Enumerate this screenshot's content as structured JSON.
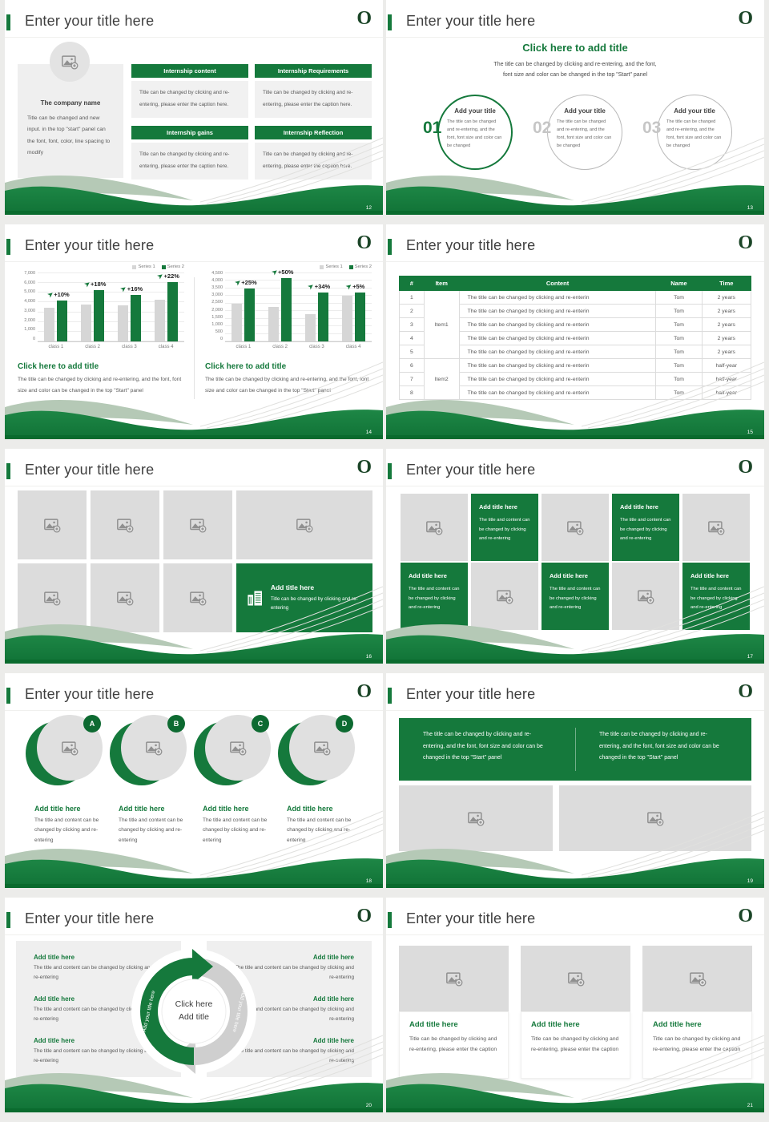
{
  "theme": {
    "green": "#15793c",
    "dark_green": "#0a6b2e",
    "logo_green": "#1b4527",
    "bar_gray": "#d6d6d6",
    "sage": "#b5c9b6"
  },
  "common": {
    "slide_title": "Enter your title here",
    "logo_text": "O"
  },
  "slide12": {
    "page": "12",
    "company": {
      "title": "The company name",
      "body": "Title can be changed and new input. in the top \"start\" panel can the font, font, color, line spacing to modify"
    },
    "box_titles": [
      "Internship content",
      "Internship Requirements",
      "Internship gains",
      "Internship Reflection"
    ],
    "box_body": "Title can be changed by clicking and re-entering, please enter the caption here."
  },
  "slide13": {
    "page": "13",
    "title": "Click here to add title",
    "subtitle": "The title can be changed by clicking and re-entering, and the font,\nfont size and color can be changed in the top \"Start\" panel",
    "nums": [
      "01",
      "02",
      "03"
    ],
    "circle": {
      "title": "Add your title",
      "body": "The title can be changed and re-entering, and the font, font size and color can be changed"
    }
  },
  "slide14": {
    "page": "14",
    "caption": {
      "title": "Click here to add title",
      "body": "The title can be changed by clicking and re-entering, and the font, font size and color can be changed in the top \"Start\" panel"
    },
    "chart_data": [
      {
        "type": "bar",
        "categories": [
          "class 1",
          "class 2",
          "class 3",
          "class 4"
        ],
        "series": [
          {
            "name": "Series 1",
            "color": "#d6d6d6",
            "values": [
              3500,
              3800,
              3700,
              4300
            ]
          },
          {
            "name": "Series 2",
            "color": "#15793c",
            "values": [
              4200,
              5300,
              4800,
              6100
            ]
          }
        ],
        "growth_labels": [
          "+10%",
          "+18%",
          "+16%",
          "+22%"
        ],
        "ylim": [
          0,
          7000
        ],
        "yticks": [
          "7,000",
          "6,000",
          "5,000",
          "4,000",
          "3,000",
          "2,000",
          "1,000",
          "0"
        ],
        "grid": true,
        "legend_position": "top-right"
      },
      {
        "type": "bar",
        "categories": [
          "class 1",
          "class 2",
          "class 3",
          "class 4"
        ],
        "series": [
          {
            "name": "Series 1",
            "color": "#d6d6d6",
            "values": [
              2500,
              2300,
              1800,
              3000
            ]
          },
          {
            "name": "Series 2",
            "color": "#15793c",
            "values": [
              3500,
              4200,
              3250,
              3250
            ]
          }
        ],
        "growth_labels": [
          "+25%",
          "+50%",
          "+34%",
          "+5%"
        ],
        "ylim": [
          0,
          4500
        ],
        "yticks": [
          "4,500",
          "4,000",
          "3,500",
          "3,000",
          "2,500",
          "2,000",
          "1,500",
          "1,000",
          "500",
          "0"
        ],
        "grid": true,
        "legend_position": "top-right"
      }
    ]
  },
  "slide15": {
    "page": "15",
    "headers": [
      "#",
      "Item",
      "Content",
      "Name",
      "Time"
    ],
    "content_text": "The title can be changed by clicking and re-enterin",
    "name_text": "Tom",
    "item_groups": [
      {
        "label": "Item1",
        "rowspan": 5
      },
      {
        "label": "Item2",
        "rowspan": 3
      }
    ],
    "rows": [
      {
        "num": "1",
        "time": "2 years"
      },
      {
        "num": "2",
        "time": "2 years"
      },
      {
        "num": "3",
        "time": "2 years"
      },
      {
        "num": "4",
        "time": "2 years"
      },
      {
        "num": "5",
        "time": "2 years"
      },
      {
        "num": "6",
        "time": "half-year"
      },
      {
        "num": "7",
        "time": "half-year"
      },
      {
        "num": "8",
        "time": "half-year"
      }
    ]
  },
  "slide16": {
    "page": "16",
    "feature": {
      "title": "Add title here",
      "body": "Title can be changed by clicking and re-entering"
    }
  },
  "slide17": {
    "page": "17",
    "cell": {
      "title": "Add title here",
      "body": "The title and content can be changed by clicking and re-entering"
    }
  },
  "slide18": {
    "page": "18",
    "badges": [
      "A",
      "B",
      "C",
      "D"
    ],
    "item": {
      "title": "Add title here",
      "body": "The title and content can be changed by clicking and re-entering"
    }
  },
  "slide19": {
    "page": "19",
    "panel_text": "The title can be changed by clicking and re-entering, and the font, font size and color can be changed in the top \"Start\" panel"
  },
  "slide20": {
    "page": "20",
    "center_line1": "Click here",
    "center_line2": "Add title",
    "ring_label": "Add your title here",
    "item": {
      "title": "Add title here",
      "body": "The title and content can be changed by clicking and re-entering"
    }
  },
  "slide21": {
    "page": "21",
    "card": {
      "title": "Add title here",
      "body": "Title can be changed by clicking and re-entering, please enter the caption"
    }
  }
}
